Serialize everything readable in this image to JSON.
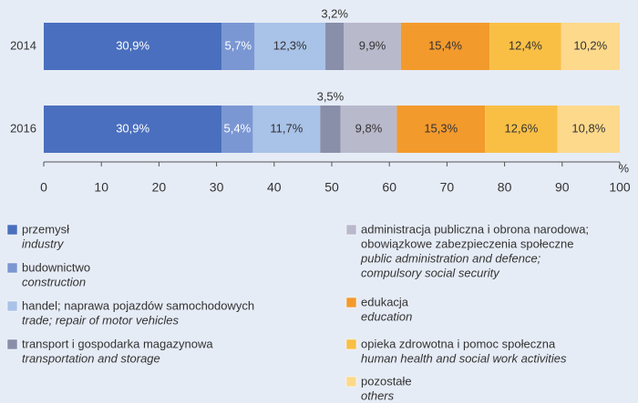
{
  "chart_data": {
    "type": "stacked_barh",
    "categories": [
      "2014",
      "2016"
    ],
    "xlim": [
      0,
      100
    ],
    "xticks": [
      0,
      10,
      20,
      30,
      40,
      50,
      60,
      70,
      80,
      90,
      100
    ],
    "xlabel": "%",
    "series": [
      {
        "name": [
          "przemysł"
        ],
        "name_en": [
          "industry"
        ],
        "color": "#4a6fbe",
        "label_color": "#ffffff",
        "values": [
          30.9,
          30.9
        ],
        "value_labels": [
          "30,9%",
          "30,9%"
        ]
      },
      {
        "name": [
          "budownictwo"
        ],
        "name_en": [
          "construction"
        ],
        "color": "#7b97d3",
        "label_color": "#ffffff",
        "values": [
          5.7,
          5.4
        ],
        "value_labels": [
          "5,7%",
          "5,4%"
        ]
      },
      {
        "name": [
          "handel; naprawa pojazdów samochodowych"
        ],
        "name_en": [
          "trade; repair of motor vehicles"
        ],
        "color": "#a9c2e8",
        "label_color": "#333333",
        "values": [
          12.3,
          11.7
        ],
        "value_labels": [
          "12,3%",
          "11,7%"
        ]
      },
      {
        "name": [
          "transport i gospodarka magazynowa"
        ],
        "name_en": [
          "transportation and storage"
        ],
        "color": "#898ea9",
        "label_color": "#333333",
        "label_position": "above",
        "values": [
          3.2,
          3.5
        ],
        "value_labels": [
          "3,2%",
          "3,5%"
        ]
      },
      {
        "name": [
          "administracja publiczna i obrona narodowa;",
          "obowiązkowe zabezpieczenia społeczne"
        ],
        "name_en": [
          "public administration and defence;",
          "compulsory social security"
        ],
        "color": "#b9b9cc",
        "label_color": "#333333",
        "values": [
          9.9,
          9.8
        ],
        "value_labels": [
          "9,9%",
          "9,8%"
        ]
      },
      {
        "name": [
          "edukacja"
        ],
        "name_en": [
          "education"
        ],
        "color": "#f39a2d",
        "label_color": "#333333",
        "values": [
          15.4,
          15.3
        ],
        "value_labels": [
          "15,4%",
          "15,3%"
        ]
      },
      {
        "name": [
          "opieka zdrowotna i pomoc społeczna"
        ],
        "name_en": [
          "human health and social work activities"
        ],
        "color": "#f9bf45",
        "label_color": "#333333",
        "values": [
          12.4,
          12.6
        ],
        "value_labels": [
          "12,4%",
          "12,6%"
        ]
      },
      {
        "name": [
          "pozostałe"
        ],
        "name_en": [
          "others"
        ],
        "color": "#fdd98b",
        "label_color": "#333333",
        "values": [
          10.2,
          10.8
        ],
        "value_labels": [
          "10,2%",
          "10,8%"
        ]
      }
    ]
  }
}
